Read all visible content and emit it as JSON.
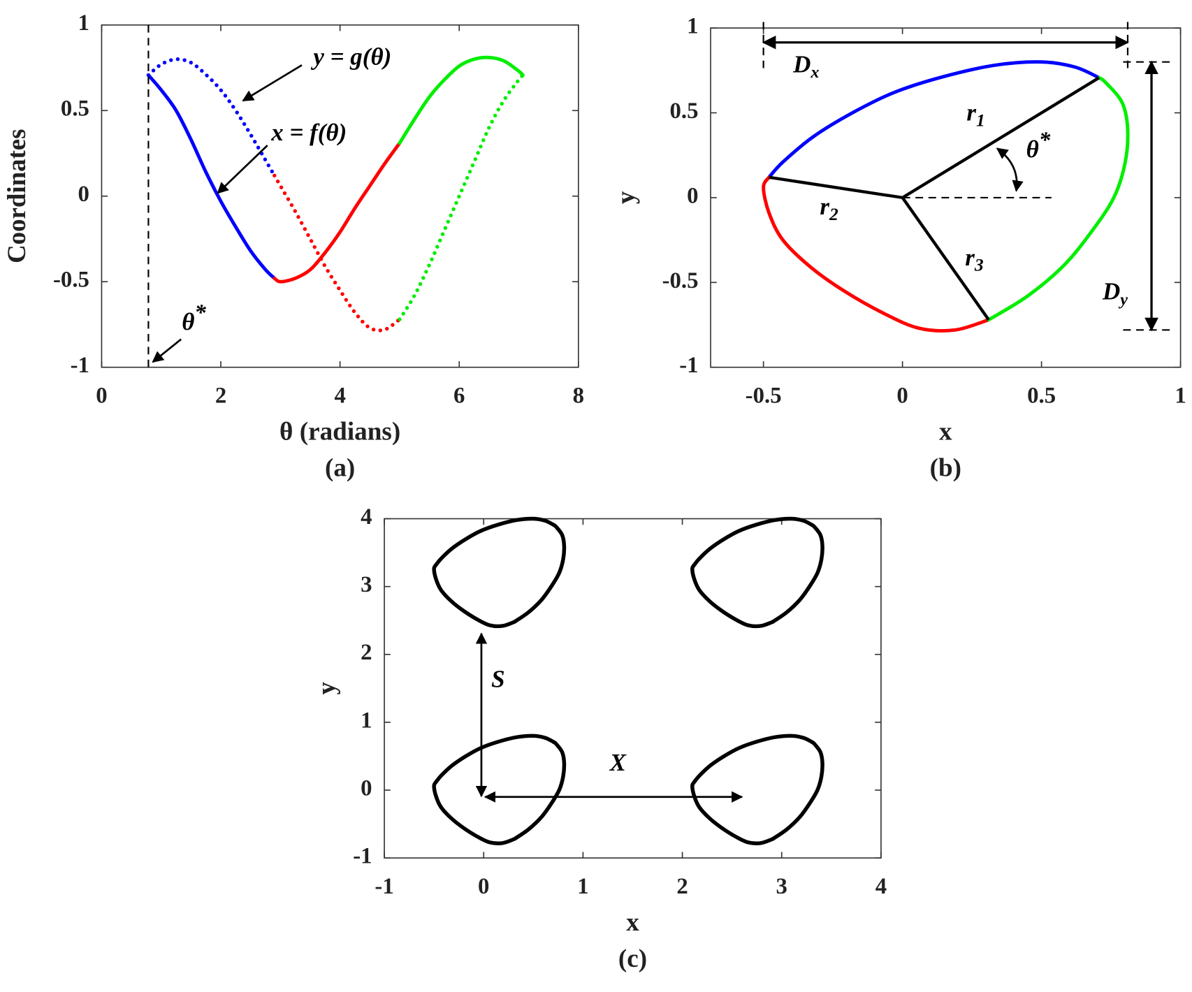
{
  "chart_data": [
    {
      "type": "line",
      "caption": "(a)",
      "xlabel": "θ (radians)",
      "ylabel": "Coordinates",
      "xlim": [
        0,
        8
      ],
      "ylim": [
        -1,
        1
      ],
      "xticks": [
        0,
        2,
        4,
        6,
        8
      ],
      "yticks": [
        -1,
        -0.5,
        0,
        0.5,
        1
      ],
      "series": [
        {
          "color": "#0000ff",
          "style": "solid",
          "x": [
            0.785,
            1.0,
            1.25,
            1.5,
            1.75,
            2.0,
            2.25,
            2.5,
            2.75,
            2.9
          ],
          "values": [
            0.707,
            0.62,
            0.5,
            0.33,
            0.14,
            -0.03,
            -0.18,
            -0.32,
            -0.43,
            -0.48
          ]
        },
        {
          "color": "#ff0000",
          "style": "solid",
          "x": [
            2.9,
            3.0,
            3.25,
            3.5,
            3.75,
            4.0,
            4.25,
            4.5,
            4.75,
            5.0
          ],
          "values": [
            -0.48,
            -0.5,
            -0.48,
            -0.43,
            -0.33,
            -0.21,
            -0.07,
            0.06,
            0.19,
            0.31
          ]
        },
        {
          "color": "#00ee00",
          "style": "solid",
          "x": [
            5.0,
            5.25,
            5.5,
            5.75,
            6.0,
            6.25,
            6.5,
            6.75,
            7.0,
            7.069
          ],
          "values": [
            0.31,
            0.45,
            0.58,
            0.68,
            0.76,
            0.8,
            0.81,
            0.79,
            0.73,
            0.707
          ]
        },
        {
          "color": "#0000ff",
          "style": "dotted",
          "x": [
            0.785,
            1.0,
            1.25,
            1.5,
            1.75,
            2.0,
            2.25,
            2.5,
            2.75,
            2.9
          ],
          "values": [
            0.707,
            0.77,
            0.8,
            0.78,
            0.71,
            0.62,
            0.5,
            0.36,
            0.21,
            0.12
          ]
        },
        {
          "color": "#ff0000",
          "style": "dotted",
          "x": [
            2.9,
            3.0,
            3.25,
            3.5,
            3.75,
            4.0,
            4.25,
            4.5,
            4.75,
            5.0
          ],
          "values": [
            0.12,
            0.06,
            -0.09,
            -0.25,
            -0.41,
            -0.55,
            -0.68,
            -0.77,
            -0.78,
            -0.72
          ]
        },
        {
          "color": "#00ee00",
          "style": "dotted",
          "x": [
            5.0,
            5.25,
            5.5,
            5.75,
            6.0,
            6.25,
            6.5,
            6.75,
            7.0,
            7.069
          ],
          "values": [
            -0.72,
            -0.58,
            -0.4,
            -0.2,
            0.0,
            0.2,
            0.4,
            0.56,
            0.68,
            0.707
          ]
        }
      ],
      "annotations": [
        {
          "base": "y = g(θ)"
        },
        {
          "base": "x = f(θ)"
        },
        {
          "base": "θ",
          "sup": "*"
        }
      ]
    },
    {
      "type": "line",
      "caption": "(b)",
      "xlabel": "x",
      "ylabel": "y",
      "xlim": [
        -0.69,
        1
      ],
      "ylim": [
        -1,
        1
      ],
      "xticks": [
        -0.5,
        0,
        0.5,
        1
      ],
      "yticks": [
        -1,
        -0.5,
        0,
        0.5,
        1
      ],
      "series": [
        {
          "color": "#0000ff",
          "style": "solid",
          "x": [
            0.707,
            0.62,
            0.5,
            0.33,
            0.14,
            -0.03,
            -0.18,
            -0.32,
            -0.43,
            -0.48
          ],
          "values": [
            0.707,
            0.77,
            0.8,
            0.78,
            0.71,
            0.62,
            0.5,
            0.36,
            0.21,
            0.12
          ]
        },
        {
          "color": "#ff0000",
          "style": "solid",
          "x": [
            -0.48,
            -0.5,
            -0.48,
            -0.43,
            -0.33,
            -0.21,
            -0.07,
            0.06,
            0.19,
            0.31
          ],
          "values": [
            0.12,
            0.06,
            -0.09,
            -0.25,
            -0.41,
            -0.55,
            -0.68,
            -0.77,
            -0.78,
            -0.72
          ]
        },
        {
          "color": "#00ee00",
          "style": "solid",
          "x": [
            0.31,
            0.45,
            0.58,
            0.68,
            0.76,
            0.8,
            0.81,
            0.79,
            0.73,
            0.707
          ],
          "values": [
            -0.72,
            -0.58,
            -0.4,
            -0.2,
            0.0,
            0.2,
            0.4,
            0.56,
            0.68,
            0.707
          ]
        }
      ],
      "annotations": [
        {
          "base": "r",
          "sub": "1"
        },
        {
          "base": "r",
          "sub": "2"
        },
        {
          "base": "r",
          "sub": "3"
        },
        {
          "base": "θ",
          "sup": "*"
        },
        {
          "base": "D",
          "sub": "x"
        },
        {
          "base": "D",
          "sub": "y"
        }
      ]
    },
    {
      "type": "tiling",
      "caption": "(c)",
      "xlabel": "x",
      "ylabel": "y",
      "xlim": [
        -1,
        4
      ],
      "ylim": [
        -1,
        4
      ],
      "xticks": [
        -1,
        0,
        1,
        2,
        3,
        4
      ],
      "yticks": [
        -1,
        0,
        1,
        2,
        3,
        4
      ],
      "color": "#000000",
      "offsets": [
        {
          "dx": 0,
          "dy": 0
        },
        {
          "dx": 2.6,
          "dy": 0
        },
        {
          "dx": 0,
          "dy": 3.2
        },
        {
          "dx": 2.6,
          "dy": 3.2
        }
      ],
      "annotations": [
        {
          "base": "S"
        },
        {
          "base": "X"
        }
      ]
    }
  ]
}
